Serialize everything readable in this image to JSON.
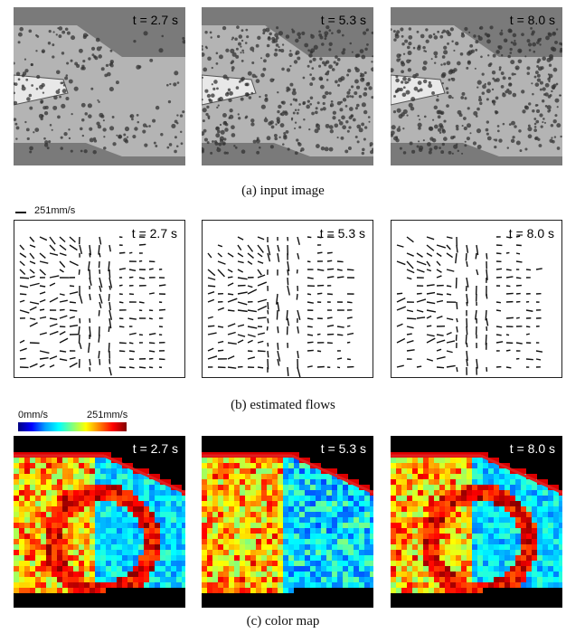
{
  "rows": {
    "input": {
      "caption": "(a) input image",
      "panels": [
        {
          "time_label": "t = 2.7 s"
        },
        {
          "time_label": "t = 5.3 s"
        },
        {
          "time_label": "t = 8.0 s"
        }
      ]
    },
    "flows": {
      "caption": "(b) estimated flows",
      "scale_label": "251mm/s",
      "panels": [
        {
          "time_label": "t = 2.7 s"
        },
        {
          "time_label": "t = 5.3 s"
        },
        {
          "time_label": "t = 8.0 s"
        }
      ]
    },
    "colormap": {
      "caption": "(c) color map",
      "colorbar": {
        "min_label": "0mm/s",
        "max_label": "251mm/s"
      },
      "panels": [
        {
          "time_label": "t = 2.7 s"
        },
        {
          "time_label": "t = 5.3 s"
        },
        {
          "time_label": "t = 8.0 s"
        }
      ]
    }
  },
  "colors": {
    "vessel_wall": "#7a7a7a",
    "lumen": "#b4b4b4",
    "needle": "#e8e8e8",
    "particle": "#333333",
    "arrow": "#111111",
    "wall_red": "#e02020",
    "background_black": "#000000"
  }
}
